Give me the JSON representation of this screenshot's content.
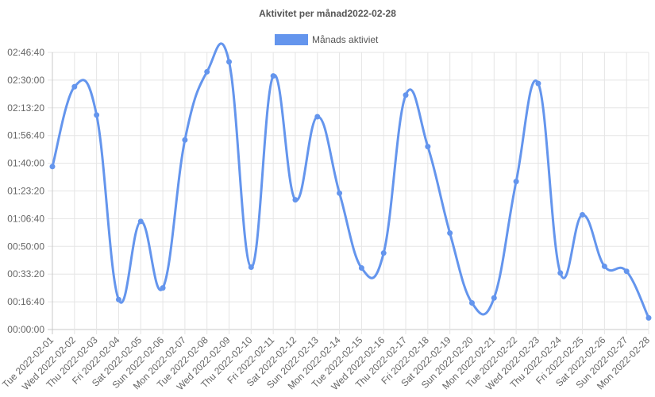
{
  "chart_data": {
    "type": "line",
    "title": "Aktivitet per månad2022-02-28",
    "legend_position": "top",
    "grid": true,
    "smooth": true,
    "colors": {
      "line": "#6495ed",
      "grid": "#e5e5e5",
      "text": "#666666"
    },
    "x": [
      "Tue 2022-02-01",
      "Wed 2022-02-02",
      "Thu 2022-02-03",
      "Fri 2022-02-04",
      "Sat 2022-02-05",
      "Sun 2022-02-06",
      "Mon 2022-02-07",
      "Tue 2022-02-08",
      "Wed 2022-02-09",
      "Thu 2022-02-10",
      "Fri 2022-02-11",
      "Sat 2022-02-12",
      "Sun 2022-02-13",
      "Mon 2022-02-14",
      "Tue 2022-02-15",
      "Wed 2022-02-16",
      "Thu 2022-02-17",
      "Fri 2022-02-18",
      "Sat 2022-02-19",
      "Sun 2022-02-20",
      "Mon 2022-02-21",
      "Tue 2022-02-22",
      "Wed 2022-02-23",
      "Thu 2022-02-24",
      "Fri 2022-02-25",
      "Sat 2022-02-26",
      "Sun 2022-02-27",
      "Mon 2022-02-28"
    ],
    "y_ticks": [
      "00:00:00",
      "00:16:40",
      "00:33:20",
      "00:50:00",
      "01:06:40",
      "01:23:20",
      "01:40:00",
      "01:56:40",
      "02:13:20",
      "02:30:00",
      "02:46:40"
    ],
    "ylim": [
      "00:00:00",
      "02:46:40"
    ],
    "series": [
      {
        "name": "Månads aktiviet",
        "values": [
          "01:38:00",
          "02:26:00",
          "02:09:00",
          "00:18:00",
          "01:05:00",
          "00:25:00",
          "01:54:00",
          "02:35:00",
          "02:41:00",
          "00:37:30",
          "02:32:30",
          "01:18:00",
          "02:08:00",
          "01:22:00",
          "00:37:00",
          "00:46:00",
          "02:21:00",
          "01:50:00",
          "00:58:00",
          "00:16:00",
          "00:19:00",
          "01:29:00",
          "02:28:00",
          "00:34:00",
          "01:09:00",
          "00:38:00",
          "00:35:00",
          "00:07:00"
        ]
      }
    ]
  }
}
